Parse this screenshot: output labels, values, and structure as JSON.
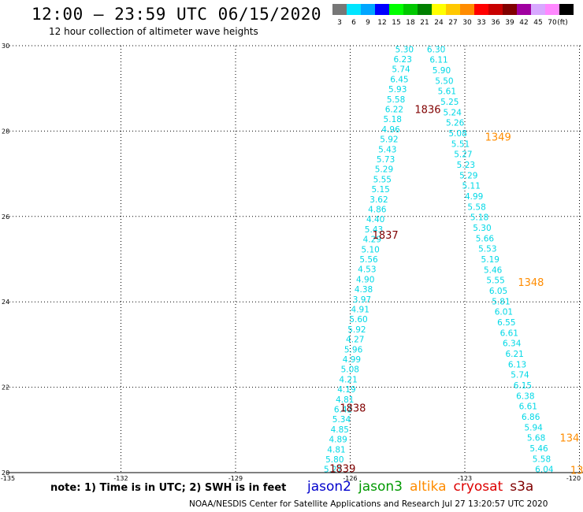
{
  "header": {
    "title": "12:00 – 23:59 UTC 06/15/2020",
    "subtitle": "12 hour collection of altimeter wave heights"
  },
  "color_scale": {
    "unit_label": "(ft)",
    "bins": [
      {
        "label": "3",
        "color": "#777777"
      },
      {
        "label": "6",
        "color": "#00e5ff"
      },
      {
        "label": "9",
        "color": "#00a6ff"
      },
      {
        "label": "12",
        "color": "#0000ff"
      },
      {
        "label": "15",
        "color": "#00ff00"
      },
      {
        "label": "18",
        "color": "#00c800"
      },
      {
        "label": "21",
        "color": "#008000"
      },
      {
        "label": "24",
        "color": "#ffff00"
      },
      {
        "label": "27",
        "color": "#ffc800"
      },
      {
        "label": "30",
        "color": "#ff8c00"
      },
      {
        "label": "33",
        "color": "#ff0000"
      },
      {
        "label": "36",
        "color": "#c80000"
      },
      {
        "label": "39",
        "color": "#800000"
      },
      {
        "label": "42",
        "color": "#a000a0"
      },
      {
        "label": "45",
        "color": "#d8a8ff"
      },
      {
        "label": "70",
        "color": "#ff88ff"
      },
      {
        "label": "",
        "color": "#000000"
      }
    ]
  },
  "map": {
    "lon_range": [
      -135,
      -123
    ],
    "lat_range": [
      20,
      30
    ],
    "lon_ticks": [
      "-135",
      "-132",
      "-129",
      "-126",
      "-123",
      "-120"
    ],
    "lat_ticks": [
      "20",
      "22",
      "24",
      "26",
      "28",
      "30"
    ],
    "lat_tick_values": [
      20,
      22,
      24,
      26,
      28,
      30
    ],
    "lon_tick_values": [
      -135,
      -132,
      -129,
      -126,
      -123,
      -120
    ],
    "grid_color": "#000000",
    "cyan": "#00d8e6",
    "time_color": "#800000",
    "time_color_alt": "#ff8c00",
    "tracks": [
      {
        "name": "track-1836-1839",
        "lat_start": 29.92,
        "lat_end": 20.08,
        "lon_start": -124.58,
        "lon_end": -126.45,
        "values": [
          "5.30",
          "6.23",
          "5.74",
          "6.45",
          "5.93",
          "5.58",
          "6.22",
          "5.18",
          "4.96",
          "5.92",
          "5.43",
          "5.73",
          "5.29",
          "5.55",
          "5.15",
          "3.62",
          "4.86",
          "4.40",
          "5.43",
          "4.29",
          "5.10",
          "5.56",
          "4.53",
          "4.90",
          "4.38",
          "3.97",
          "4.91",
          "5.60",
          "5.92",
          "4.27",
          "5.96",
          "4.99",
          "5.08",
          "4.21",
          "4.19",
          "4.81",
          "6.42",
          "5.34",
          "4.85",
          "4.89",
          "4.81",
          "5.80",
          "5.27"
        ]
      },
      {
        "name": "track-1348-1349",
        "lat_start": 29.92,
        "lat_end": 20.08,
        "lon_start": -123.75,
        "lon_end": -120.92,
        "values": [
          "6.30",
          "6.11",
          "5.90",
          "5.50",
          "5.61",
          "5.25",
          "5.24",
          "5.26",
          "5.08",
          "5.51",
          "5.27",
          "5.23",
          "5.29",
          "5.11",
          "4.99",
          "5.58",
          "5.18",
          "5.30",
          "5.66",
          "5.53",
          "5.19",
          "5.46",
          "5.55",
          "6.05",
          "5.81",
          "6.01",
          "6.55",
          "6.61",
          "6.34",
          "6.21",
          "6.13",
          "5.74",
          "6.15",
          "6.38",
          "6.61",
          "6.86",
          "5.94",
          "5.68",
          "5.46",
          "5.58",
          "6.04"
        ]
      }
    ],
    "time_labels": [
      {
        "text": "1836",
        "lat": 28.5,
        "lon": -123.97,
        "kind": "main"
      },
      {
        "text": "1837",
        "lat": 25.55,
        "lon": -125.08,
        "kind": "main"
      },
      {
        "text": "1838",
        "lat": 21.5,
        "lon": -125.93,
        "kind": "main"
      },
      {
        "text": "1839",
        "lat": 20.08,
        "lon": -126.2,
        "kind": "main"
      },
      {
        "text": "1349",
        "lat": 27.85,
        "lon": -122.13,
        "kind": "alt"
      },
      {
        "text": "1348",
        "lat": 24.45,
        "lon": -121.27,
        "kind": "alt"
      },
      {
        "text": "134",
        "lat": 20.8,
        "lon": -120.26,
        "kind": "alt"
      },
      {
        "text": "13",
        "lat": 20.05,
        "lon": -120.07,
        "kind": "alt"
      }
    ]
  },
  "note": "note: 1) Time is in UTC; 2) SWH is in feet",
  "satellites": [
    {
      "name": "jason2",
      "color": "#0000cc"
    },
    {
      "name": "jason3",
      "color": "#009900"
    },
    {
      "name": "altika",
      "color": "#ff8c00"
    },
    {
      "name": "cryosat",
      "color": "#dd0000"
    },
    {
      "name": "s3a",
      "color": "#800000"
    }
  ],
  "footer": "NOAA/NESDIS Center for Satellite Applications and Research   Jul 27 13:20:57 UTC 2020"
}
